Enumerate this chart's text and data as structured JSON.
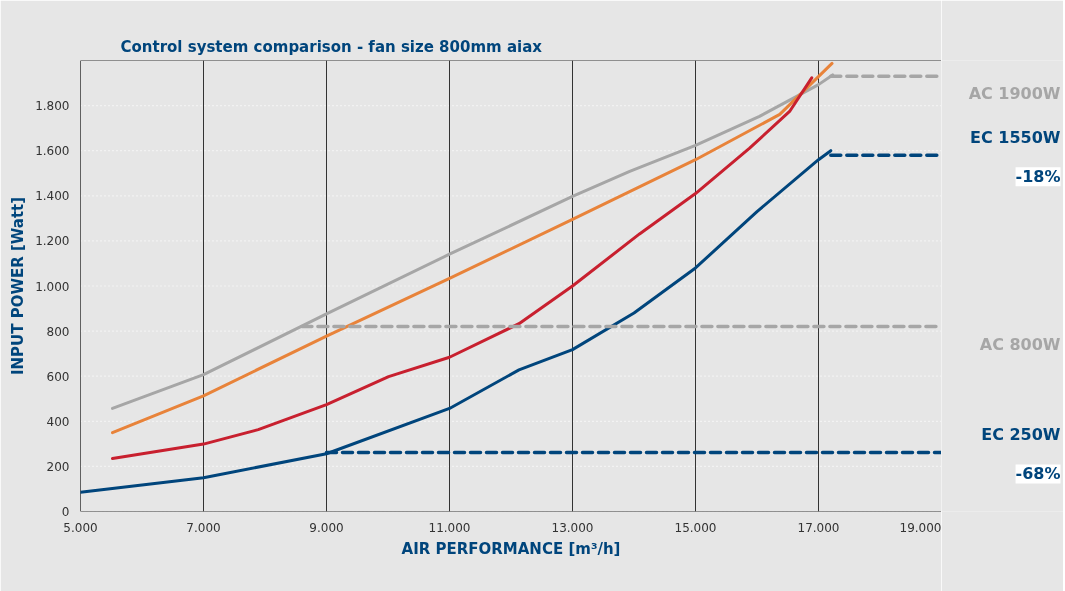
{
  "chart_data": {
    "type": "line",
    "title": "Control system comparison - fan size 800mm aiax",
    "xlabel": "AIR PERFORMANCE [m³/h]",
    "ylabel": "INPUT POWER [Watt]",
    "xlim": [
      5000,
      19000
    ],
    "ylim": [
      0,
      2000
    ],
    "xticks": [
      {
        "value": 5000,
        "label": "5.000"
      },
      {
        "value": 7000,
        "label": "7.000"
      },
      {
        "value": 9000,
        "label": "9.000"
      },
      {
        "value": 11000,
        "label": "11.000"
      },
      {
        "value": 13000,
        "label": "13.000"
      },
      {
        "value": 15000,
        "label": "15.000"
      },
      {
        "value": 17000,
        "label": "17.000"
      },
      {
        "value": 19000,
        "label": "19.000"
      }
    ],
    "yticks": [
      0,
      200,
      400,
      600,
      800,
      {
        "value": 1000,
        "label": "1.000"
      },
      {
        "value": 1200,
        "label": "1.200"
      },
      {
        "value": 1400,
        "label": "1.400"
      },
      {
        "value": 1600,
        "label": "1.600"
      },
      {
        "value": 1800,
        "label": "1.800"
      }
    ],
    "grid": true,
    "legend": false,
    "series": [
      {
        "color": "#a6a6a6",
        "x": [
          5520,
          7000,
          9000,
          11000,
          13000,
          13930,
          15000,
          16040,
          17000,
          17230
        ],
        "values": [
          457,
          607,
          876,
          1141,
          1397,
          1508,
          1624,
          1752,
          1893,
          1936
        ]
      },
      {
        "color": "#e8833a",
        "x": [
          5520,
          7000,
          9000,
          11000,
          13000,
          15000,
          16370,
          17220
        ],
        "values": [
          350,
          513,
          778,
          1034,
          1295,
          1560,
          1761,
          1987
        ]
      },
      {
        "color": "#c8202f",
        "x": [
          5520,
          7000,
          7890,
          9000,
          10010,
          11000,
          12130,
          13000,
          14090,
          15000,
          15880,
          16530,
          16890
        ],
        "values": [
          235,
          299,
          363,
          474,
          598,
          684,
          833,
          1000,
          1231,
          1410,
          1611,
          1774,
          1923
        ]
      },
      {
        "color": "#00457c",
        "x": [
          5000,
          7000,
          9000,
          11000,
          12130,
          13000,
          14000,
          15000,
          16000,
          17000,
          17200
        ],
        "values": [
          85,
          150,
          256,
          457,
          628,
          718,
          880,
          1080,
          1330,
          1560,
          1600
        ]
      },
      {
        "name": "AC 1900W",
        "color": "#a6a6a6",
        "line_style": "dashed",
        "x": [
          17200,
          19000
        ],
        "values": [
          1930,
          1930
        ]
      },
      {
        "name": "EC 1550W",
        "color": "#00457c",
        "line_style": "dashed",
        "x": [
          17200,
          19000
        ],
        "values": [
          1580,
          1580
        ]
      },
      {
        "name": "AC 800W",
        "color": "#a6a6a6",
        "line_style": "dashed",
        "x": [
          8600,
          19000
        ],
        "values": [
          820,
          820
        ]
      },
      {
        "name": "EC 250W",
        "color": "#00457c",
        "line_style": "dashed",
        "x": [
          9000,
          19000
        ],
        "values": [
          262,
          262
        ]
      }
    ],
    "annotations": [
      "-18%",
      "-68%"
    ]
  }
}
